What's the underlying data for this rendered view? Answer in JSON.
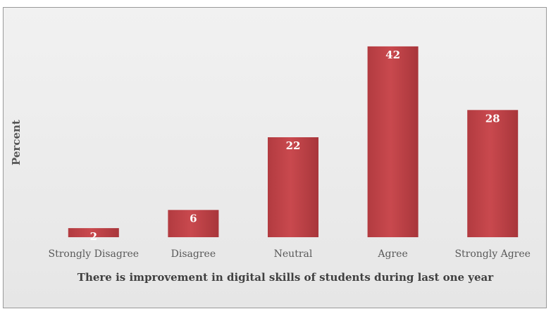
{
  "chart_data": {
    "type": "bar",
    "categories": [
      "Strongly Disagree",
      "Disagree",
      "Neutral",
      "Agree",
      "Strongly Agree"
    ],
    "values": [
      2,
      6,
      22,
      42,
      28
    ],
    "xlabel": "There is improvement in digital skills of students during last one year",
    "ylabel": "Percent",
    "ylim": [
      0,
      44
    ],
    "grid": false,
    "legend": "none",
    "bar_color": "#c0454a",
    "bar_color_dark": "#a8363b",
    "label_color": "#ffffff"
  }
}
